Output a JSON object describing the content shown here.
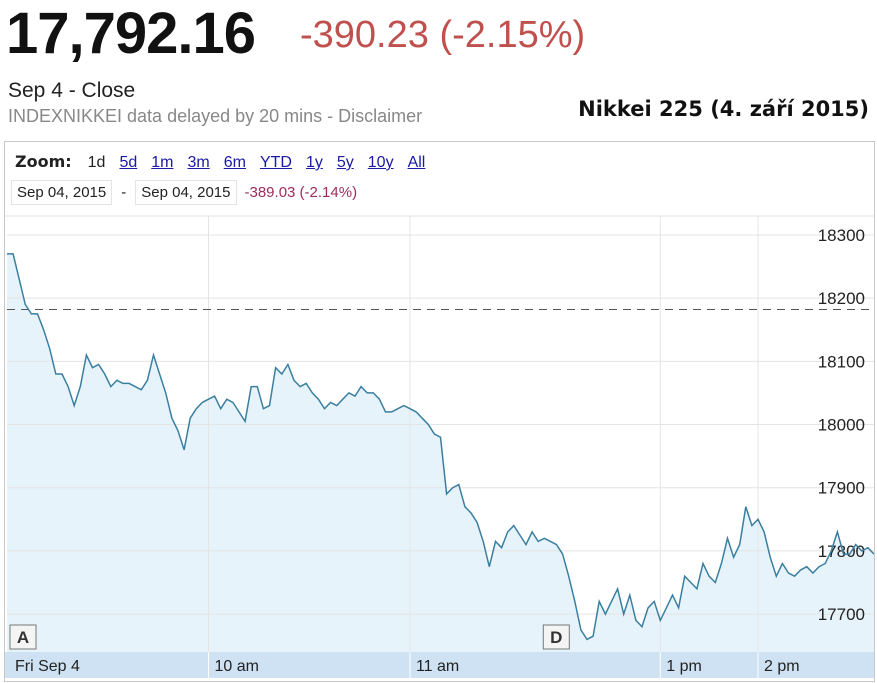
{
  "header": {
    "price": "17,792.16",
    "change": "-390.23 (-2.15%)",
    "session": "Sep 4 - Close",
    "delay_note": "INDEXNIKKEI data delayed by 20 mins - Disclaimer",
    "caption": "Nikkei 225 (4. září 2015)"
  },
  "zoom": {
    "label": "Zoom:",
    "options": [
      "1d",
      "5d",
      "1m",
      "3m",
      "6m",
      "YTD",
      "1y",
      "5y",
      "10y",
      "All"
    ],
    "selected": "1d"
  },
  "range": {
    "start": "Sep 04, 2015",
    "separator": "-",
    "end": "Sep 04, 2015",
    "change": "-389.03 (-2.14%)"
  },
  "colors": {
    "change": "#c0504d",
    "range_change": "#9b2d5a",
    "line": "#3a7fa0",
    "fill": "#e6f3fb",
    "axis_bar": "#cfe2f3",
    "prev_close_line": "#555555"
  },
  "chart_data": {
    "type": "area",
    "x_labels": [
      "Fri Sep 4",
      "10 am",
      "11 am",
      "1 pm",
      "2 pm"
    ],
    "y_ticks": [
      17700,
      17800,
      17900,
      18000,
      18100,
      18200,
      18300
    ],
    "ylim": [
      17640,
      18330
    ],
    "previous_close": 18182,
    "grid": true,
    "flags": [
      {
        "label": "A",
        "x_index": 3
      },
      {
        "label": "D",
        "x_index": 88
      }
    ],
    "series": [
      {
        "values": [
          18270,
          18270,
          18230,
          18190,
          18175,
          18175,
          18150,
          18120,
          18080,
          18080,
          18060,
          18030,
          18060,
          18110,
          18090,
          18095,
          18080,
          18060,
          18070,
          18065,
          18065,
          18060,
          18055,
          18070,
          18110,
          18080,
          18050,
          18010,
          17990,
          17960,
          18010,
          18025,
          18035,
          18040,
          18045,
          18025,
          18040,
          18035,
          18020,
          18005,
          18060,
          18060,
          18025,
          18030,
          18090,
          18080,
          18095,
          18070,
          18060,
          18065,
          18050,
          18040,
          18025,
          18035,
          18030,
          18040,
          18050,
          18045,
          18060,
          18050,
          18050,
          18040,
          18020,
          18020,
          18025,
          18030,
          18025,
          18020,
          18010,
          18000,
          17985,
          17980,
          17890,
          17900,
          17905,
          17870,
          17860,
          17845,
          17815,
          17775,
          17815,
          17805,
          17830,
          17840,
          17825,
          17810,
          17830,
          17815,
          17820,
          17815,
          17810,
          17795,
          17760,
          17720,
          17675,
          17660,
          17665,
          17720,
          17700,
          17720,
          17740,
          17700,
          17730,
          17690,
          17680,
          17710,
          17720,
          17690,
          17710,
          17730,
          17710,
          17760,
          17750,
          17740,
          17780,
          17760,
          17750,
          17780,
          17820,
          17790,
          17810,
          17870,
          17840,
          17850,
          17830,
          17790,
          17760,
          17780,
          17765,
          17760,
          17770,
          17775,
          17765,
          17775,
          17780,
          17800,
          17830,
          17795,
          17795,
          17810,
          17800,
          17805,
          17795
        ]
      }
    ]
  }
}
